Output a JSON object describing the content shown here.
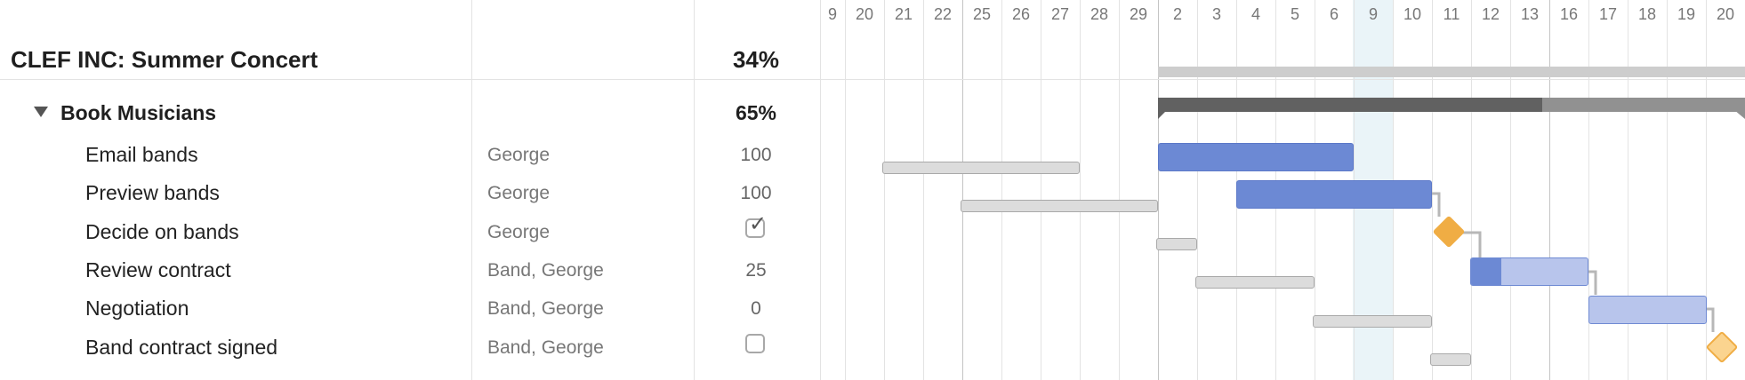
{
  "project": {
    "title": "CLEF INC: Summer Concert",
    "percent": "34%"
  },
  "group": {
    "title": "Book Musicians",
    "percent": "65%"
  },
  "tasks": [
    {
      "name": "Email bands",
      "assignee": "George",
      "progress": "100"
    },
    {
      "name": "Preview bands",
      "assignee": "George",
      "progress": "100"
    },
    {
      "name": "Decide on bands",
      "assignee": "George",
      "progress": "",
      "milestone_checked": true
    },
    {
      "name": "Review contract",
      "assignee": "Band, George",
      "progress": "25"
    },
    {
      "name": "Negotiation",
      "assignee": "Band, George",
      "progress": "0"
    },
    {
      "name": "Band contract signed",
      "assignee": "Band, George",
      "progress": "",
      "milestone_checked": false
    }
  ],
  "timeline": {
    "days": [
      "9",
      "20",
      "21",
      "22",
      "25",
      "26",
      "27",
      "28",
      "29",
      "2",
      "3",
      "4",
      "5",
      "6",
      "9",
      "10",
      "11",
      "12",
      "13",
      "16",
      "17",
      "18",
      "19",
      "20"
    ],
    "today": "9"
  },
  "colors": {
    "task_bar": "#6c89d4",
    "task_bar_remaining": "#b8c5ec",
    "milestone_done": "#f0ad44",
    "milestone_pending": "#fbd48f",
    "group_bar_done": "#616161",
    "group_bar_remaining": "#919191",
    "project_bar": "#cdcdcd",
    "today_highlight": "#eaf4f8"
  },
  "icons": [
    "collapse-triangle-icon",
    "checkbox-checked-icon",
    "checkbox-empty-icon"
  ]
}
